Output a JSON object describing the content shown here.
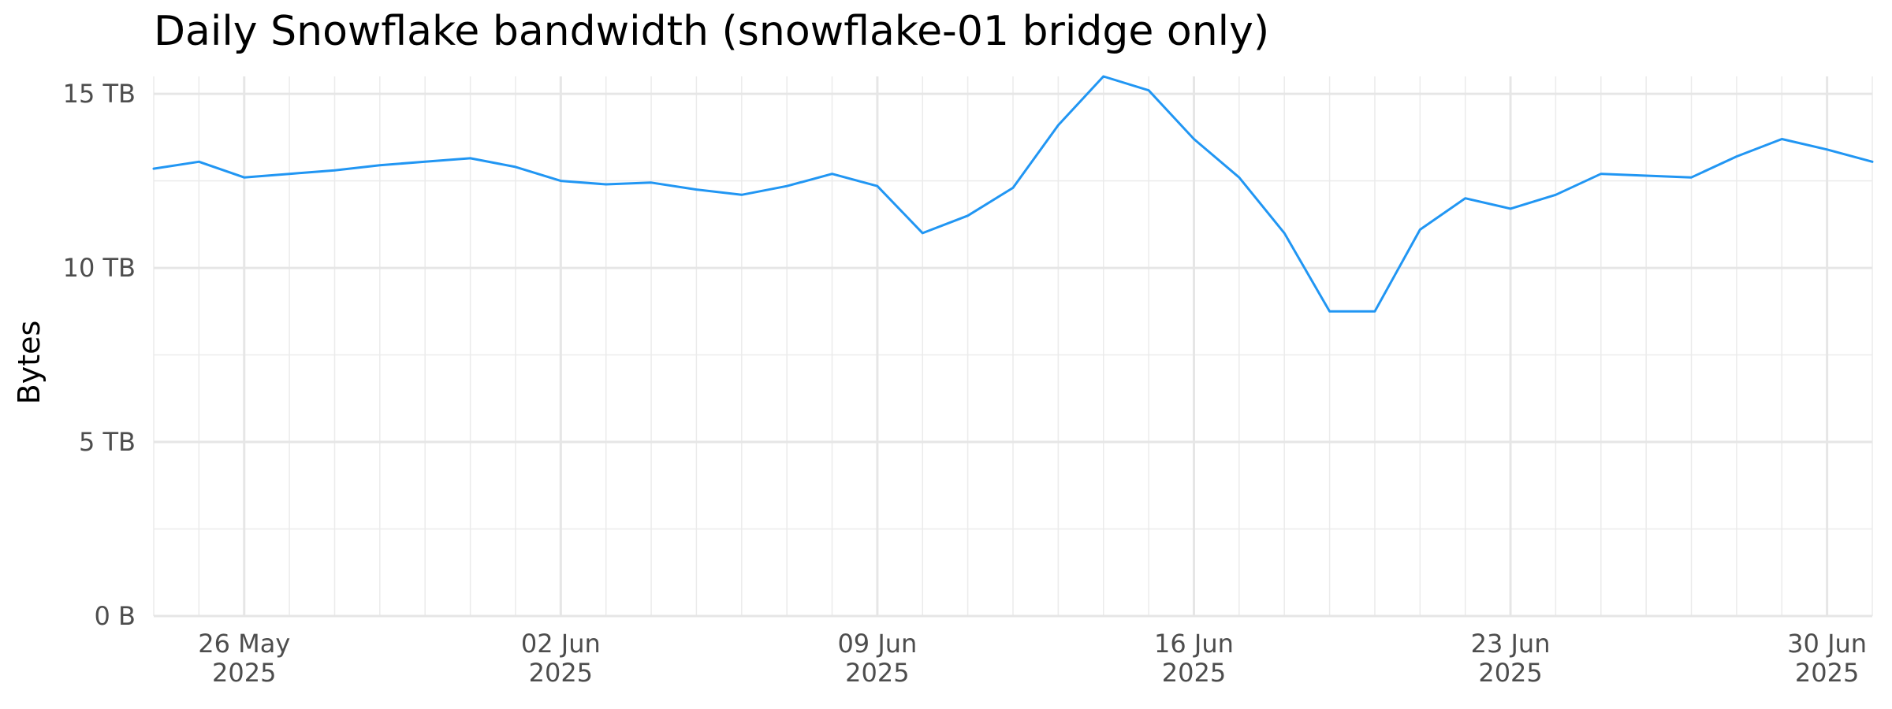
{
  "chart_data": {
    "type": "line",
    "title": "Daily Snowflake bandwidth (snowflake-01 bridge only)",
    "xlabel": "",
    "ylabel": "Bytes",
    "x_range": [
      "2025-05-24",
      "2025-07-01"
    ],
    "ylim": [
      0,
      15.5
    ],
    "y_unit": "TB",
    "y_ticks": [
      {
        "value": 0,
        "label": "0 B"
      },
      {
        "value": 5,
        "label": "5 TB"
      },
      {
        "value": 10,
        "label": "10 TB"
      },
      {
        "value": 15,
        "label": "15 TB"
      }
    ],
    "x_ticks": [
      {
        "date": "2025-05-26",
        "label": [
          "26 May",
          "2025"
        ]
      },
      {
        "date": "2025-06-02",
        "label": [
          "02 Jun",
          "2025"
        ]
      },
      {
        "date": "2025-06-09",
        "label": [
          "09 Jun",
          "2025"
        ]
      },
      {
        "date": "2025-06-16",
        "label": [
          "16 Jun",
          "2025"
        ]
      },
      {
        "date": "2025-06-23",
        "label": [
          "23 Jun",
          "2025"
        ]
      },
      {
        "date": "2025-06-30",
        "label": [
          "30 Jun",
          "2025"
        ]
      }
    ],
    "grid": true,
    "line_color": "#2196f3",
    "series": [
      {
        "x": [
          "2025-05-24",
          "2025-05-25",
          "2025-05-26",
          "2025-05-27",
          "2025-05-28",
          "2025-05-29",
          "2025-05-30",
          "2025-05-31",
          "2025-06-01",
          "2025-06-02",
          "2025-06-03",
          "2025-06-04",
          "2025-06-05",
          "2025-06-06",
          "2025-06-07",
          "2025-06-08",
          "2025-06-09",
          "2025-06-10",
          "2025-06-11",
          "2025-06-12",
          "2025-06-13",
          "2025-06-14",
          "2025-06-15",
          "2025-06-16",
          "2025-06-17",
          "2025-06-18",
          "2025-06-19",
          "2025-06-20",
          "2025-06-21",
          "2025-06-22",
          "2025-06-23",
          "2025-06-24",
          "2025-06-25",
          "2025-06-26",
          "2025-06-27",
          "2025-06-28",
          "2025-06-29",
          "2025-06-30",
          "2025-07-01"
        ],
        "values": [
          12.85,
          13.05,
          12.6,
          12.7,
          12.8,
          12.95,
          13.05,
          13.15,
          12.9,
          12.5,
          12.4,
          12.45,
          12.25,
          12.1,
          12.35,
          12.7,
          12.35,
          11.0,
          11.5,
          12.3,
          14.1,
          15.5,
          15.1,
          13.7,
          12.6,
          11.0,
          8.75,
          8.75,
          11.1,
          12.0,
          11.7,
          12.1,
          12.7,
          12.65,
          12.6,
          13.2,
          13.7,
          13.4,
          13.05
        ]
      }
    ]
  }
}
